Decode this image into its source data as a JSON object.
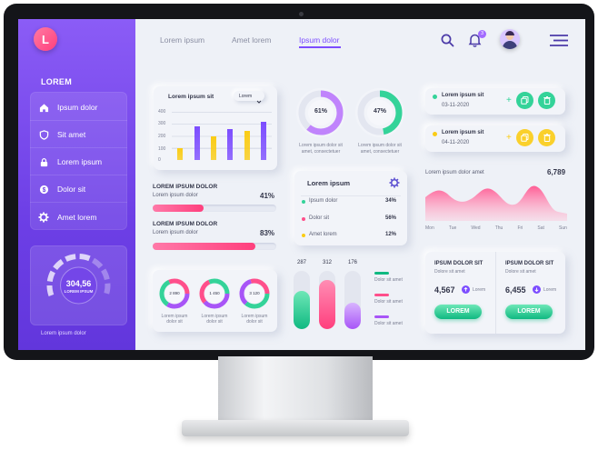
{
  "logo": {
    "letter": "L"
  },
  "nav": {
    "items": [
      "Lorem ipsum",
      "Amet lorem",
      "Ipsum dolor"
    ],
    "notification_count": "3"
  },
  "sidebar": {
    "title": "LOREM",
    "items": [
      {
        "icon": "home-icon",
        "label": "Ipsum dolor"
      },
      {
        "icon": "shield-icon",
        "label": "Sit amet"
      },
      {
        "icon": "lock-icon",
        "label": "Lorem ipsum"
      },
      {
        "icon": "dollar-icon",
        "label": "Dolor sit"
      },
      {
        "icon": "gear-icon",
        "label": "Amet lorem"
      }
    ],
    "gauge": {
      "value": "304,56",
      "label": "LOREM IPSUM"
    },
    "footer": "Lorem ipsum dolor"
  },
  "bar_chart": {
    "title": "Lorem ipsum sit",
    "select": "Lorem"
  },
  "chart_data": {
    "type": "bar",
    "yticks": [
      "400",
      "300",
      "200",
      "100",
      "0"
    ],
    "ylim": [
      0,
      400
    ],
    "values": [
      100,
      280,
      200,
      260,
      240,
      320
    ]
  },
  "donuts": [
    {
      "value": 61,
      "label": "61%",
      "caption": [
        "Lorem ipsum dolor sit",
        "amet, consectetuer"
      ]
    },
    {
      "value": 47,
      "label": "47%",
      "caption": [
        "Lorem ipsum dolor sit",
        "amet, consectetuer"
      ]
    }
  ],
  "events": [
    {
      "title": "Lorem ipsum sit",
      "date": "03-11-2020"
    },
    {
      "title": "Lorem ipsum sit",
      "date": "04-11-2020"
    }
  ],
  "progress": [
    {
      "title": "LOREM IPSUM DOLOR",
      "subtitle": "Lorem ipsum dolor",
      "percent": "41%",
      "value": 41
    },
    {
      "title": "LOREM IPSUM DOLOR",
      "subtitle": "Lorem ipsum dolor",
      "percent": "83%",
      "value": 83
    }
  ],
  "legend_card": {
    "title": "Lorem ipsum",
    "rows": [
      {
        "label": "Ipsum dolor",
        "value": "34%"
      },
      {
        "label": "Dolor sit",
        "value": "56%"
      },
      {
        "label": "Amet lorem",
        "value": "12%"
      }
    ]
  },
  "area_chart": {
    "title": "Lorem ipsum dolor amet",
    "value": "6,789",
    "days": [
      "Mon",
      "Tue",
      "Wed",
      "Thu",
      "Fri",
      "Sat",
      "Sun"
    ]
  },
  "small_donuts": [
    {
      "value": "2 890",
      "caption": [
        "Lorem ipsum",
        "dolor sit"
      ]
    },
    {
      "value": "1 450",
      "caption": [
        "Lorem ipsum",
        "dolor sit"
      ]
    },
    {
      "value": "3 120",
      "caption": [
        "Lorem ipsum",
        "dolor sit"
      ]
    }
  ],
  "pills": [
    {
      "value": "287",
      "level": 0.65
    },
    {
      "value": "312",
      "level": 0.85
    },
    {
      "value": "176",
      "level": 0.45
    }
  ],
  "pill_legend": [
    "Dolor sit amet",
    "Dolor sit amet",
    "Dolor sit amet"
  ],
  "stats": [
    {
      "title": "IPSUM DOLOR SIT",
      "subtitle": "Dolore sit amet",
      "value": "4,567",
      "tag": "Lorem",
      "button": "LOREM"
    },
    {
      "title": "IPSUM DOLOR SIT",
      "subtitle": "Dolore sit amet",
      "value": "6,455",
      "tag": "Lorem",
      "button": "LOREM"
    }
  ]
}
